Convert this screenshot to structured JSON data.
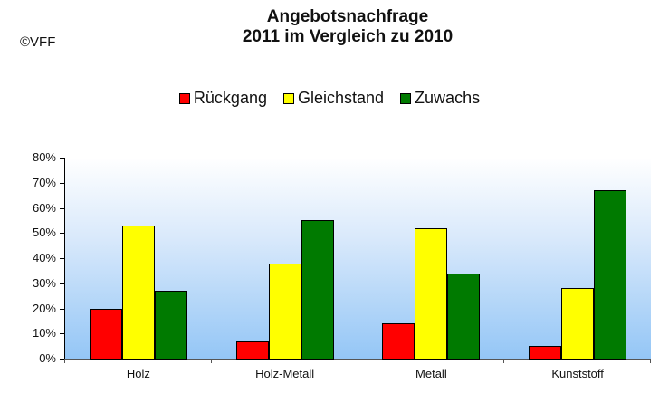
{
  "header": {
    "title_line1": "Angebotsnachfrage",
    "title_line2": "2011 im Vergleich zu 2010",
    "copyright": "©VFF"
  },
  "legend": [
    {
      "label": "Rückgang",
      "color": "#ff0000"
    },
    {
      "label": "Gleichstand",
      "color": "#ffff00"
    },
    {
      "label": "Zuwachs",
      "color": "#007a00"
    }
  ],
  "axis": {
    "y_ticks": [
      "0%",
      "10%",
      "20%",
      "30%",
      "40%",
      "50%",
      "60%",
      "70%",
      "80%"
    ]
  },
  "chart_data": {
    "type": "bar",
    "title": "Angebotsnachfrage 2011 im Vergleich zu 2010",
    "subtitle": "",
    "annotation": "©VFF",
    "categories": [
      "Holz",
      "Holz-Metall",
      "Metall",
      "Kunststoff"
    ],
    "series": [
      {
        "name": "Rückgang",
        "color": "#ff0000",
        "values": [
          20,
          7,
          14,
          5
        ]
      },
      {
        "name": "Gleichstand",
        "color": "#ffff00",
        "values": [
          53,
          38,
          52,
          28
        ]
      },
      {
        "name": "Zuwachs",
        "color": "#007a00",
        "values": [
          27,
          55,
          34,
          67
        ]
      }
    ],
    "xlabel": "",
    "ylabel": "",
    "ylim": [
      0,
      80
    ],
    "y_unit": "%",
    "y_tick_step": 10,
    "grid": false,
    "legend_position": "top"
  }
}
